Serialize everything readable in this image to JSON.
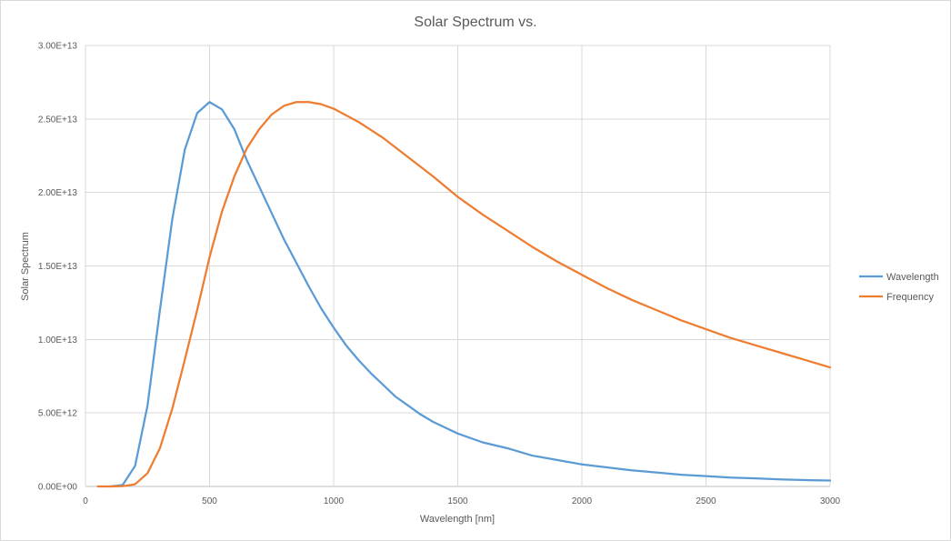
{
  "chart_data": {
    "type": "line",
    "title": "Solar Spectrum vs.",
    "xlabel": "Wavelength [nm]",
    "ylabel": "Solar Spectrum",
    "xlim": [
      0,
      3000
    ],
    "ylim": [
      0,
      30000000000000
    ],
    "x_ticks": [
      0,
      500,
      1000,
      1500,
      2000,
      2500,
      3000
    ],
    "x_tick_labels": [
      "0",
      "500",
      "1000",
      "1500",
      "2000",
      "2500",
      "3000"
    ],
    "y_ticks": [
      0,
      5000000000000,
      10000000000000,
      15000000000000,
      20000000000000,
      25000000000000,
      30000000000000
    ],
    "y_tick_labels": [
      "0.00E+00",
      "5.00E+12",
      "1.00E+13",
      "1.50E+13",
      "2.00E+13",
      "2.50E+13",
      "3.00E+13"
    ],
    "grid": "vertical and horizontal major gridlines",
    "legend_position": "right",
    "series": [
      {
        "name": "Wavelength",
        "color": "#5B9BD5",
        "x": [
          100,
          150,
          200,
          250,
          300,
          350,
          400,
          450,
          500,
          550,
          600,
          650,
          700,
          750,
          800,
          850,
          900,
          950,
          1000,
          1050,
          1100,
          1150,
          1200,
          1250,
          1300,
          1350,
          1400,
          1450,
          1500,
          1600,
          1700,
          1800,
          1900,
          2000,
          2100,
          2200,
          2300,
          2400,
          2500,
          2600,
          2700,
          2800,
          2900,
          3000
        ],
        "values": [
          0,
          100000000000.0,
          1400000000000.0,
          5500000000000.0,
          12000000000000.0,
          18200000000000.0,
          22900000000000.0,
          25400000000000.0,
          26150000000000.0,
          25650000000000.0,
          24300000000000.0,
          22200000000000.0,
          20400000000000.0,
          18600000000000.0,
          16800000000000.0,
          15200000000000.0,
          13600000000000.0,
          12100000000000.0,
          10800000000000.0,
          9600000000000.0,
          8600000000000.0,
          7700000000000.0,
          6900000000000.0,
          6100000000000.0,
          5500000000000.0,
          4900000000000.0,
          4400000000000.0,
          4000000000000.0,
          3600000000000.0,
          3000000000000.0,
          2600000000000.0,
          2100000000000.0,
          1800000000000.0,
          1500000000000.0,
          1300000000000.0,
          1100000000000.0,
          950000000000.0,
          800000000000.0,
          700000000000.0,
          600000000000.0,
          550000000000.0,
          480000000000.0,
          430000000000.0,
          400000000000.0
        ]
      },
      {
        "name": "Frequency",
        "color": "#ED7D31",
        "x": [
          50,
          100,
          150,
          200,
          250,
          300,
          350,
          400,
          450,
          500,
          550,
          600,
          650,
          700,
          750,
          800,
          850,
          900,
          950,
          1000,
          1100,
          1200,
          1300,
          1400,
          1500,
          1600,
          1700,
          1800,
          1900,
          2000,
          2100,
          2200,
          2300,
          2400,
          2500,
          2600,
          2700,
          2800,
          2900,
          3000
        ],
        "values": [
          0,
          0,
          20000000000.0,
          150000000000.0,
          900000000000.0,
          2600000000000.0,
          5300000000000.0,
          8600000000000.0,
          12000000000000.0,
          15600000000000.0,
          18700000000000.0,
          21100000000000.0,
          23000000000000.0,
          24300000000000.0,
          25300000000000.0,
          25900000000000.0,
          26150000000000.0,
          26150000000000.0,
          26000000000000.0,
          25700000000000.0,
          24800000000000.0,
          23700000000000.0,
          22400000000000.0,
          21100000000000.0,
          19700000000000.0,
          18500000000000.0,
          17400000000000.0,
          16300000000000.0,
          15300000000000.0,
          14400000000000.0,
          13500000000000.0,
          12700000000000.0,
          12000000000000.0,
          11300000000000.0,
          10700000000000.0,
          10100000000000.0,
          9600000000000.0,
          9100000000000.0,
          8600000000000.0,
          8100000000000.0
        ]
      }
    ]
  }
}
